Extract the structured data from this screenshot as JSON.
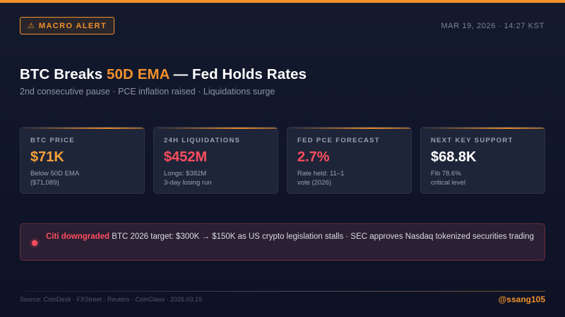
{
  "alert": {
    "icon": "warning-icon",
    "icon_glyph": "⚠",
    "label": "MACRO ALERT"
  },
  "timestamp": "MAR 19, 2026 · 14:27 KST",
  "headline": {
    "part1": "BTC Breaks ",
    "accent": "50D EMA",
    "part2": " — Fed Holds Rates"
  },
  "subheadline": "2nd consecutive pause · PCE inflation raised · Liquidations surge",
  "cards": [
    {
      "label": "BTC PRICE",
      "value": "$71K",
      "note1": "Below 50D EMA",
      "note2": "($71,089)"
    },
    {
      "label": "24H LIQUIDATIONS",
      "value": "$452M",
      "note1": "Longs: $382M",
      "note2": "3-day losing run"
    },
    {
      "label": "FED PCE FORECAST",
      "value": "2.7%",
      "note1": "Rate held: 11–1",
      "note2": "vote (2026)"
    },
    {
      "label": "NEXT KEY SUPPORT",
      "value": "$68.8K",
      "note1": "Fib 78.6%",
      "note2": "critical level"
    }
  ],
  "news": {
    "highlight": "Citi downgraded",
    "text": " BTC 2026 target: $300K → $150K as US crypto legislation stalls · SEC approves Nasdaq tokenized securities trading"
  },
  "footer": {
    "sources": "Source: CoinDesk · FXStreet · Reuters · CoinGlass · 2026.03.19",
    "handle": "@ssang105"
  },
  "colors": {
    "accent": "#f0912c",
    "danger": "#ff4d5e",
    "background": "#121729",
    "card": "#1f2538"
  }
}
